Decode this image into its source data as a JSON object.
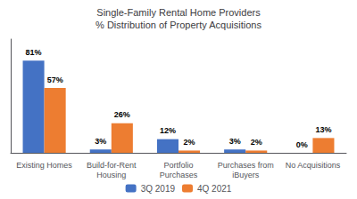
{
  "chart_data": {
    "type": "bar",
    "title": "Single-Family Rental Home Providers\n% Distribution of Property Acquisitions",
    "categories": [
      "Existing Homes",
      "Build-for-Rent\nHousing",
      "Portfolio\nPurchases",
      "Purchases from\niBuyers",
      "No Acquisitions"
    ],
    "series": [
      {
        "name": "3Q 2019",
        "color": "#4472C4",
        "values": [
          81,
          3,
          12,
          3,
          0
        ],
        "value_labels": [
          "81%",
          "3%",
          "12%",
          "3%",
          "0%"
        ]
      },
      {
        "name": "4Q 2021",
        "color": "#ED7D31",
        "values": [
          57,
          26,
          2,
          2,
          13
        ],
        "value_labels": [
          "57%",
          "26%",
          "2%",
          "2%",
          "13%"
        ]
      }
    ],
    "ylim": [
      0,
      100
    ],
    "yticks": [],
    "grid": false,
    "legend": "bottom",
    "data_labels": true,
    "tick_labels": "x"
  }
}
